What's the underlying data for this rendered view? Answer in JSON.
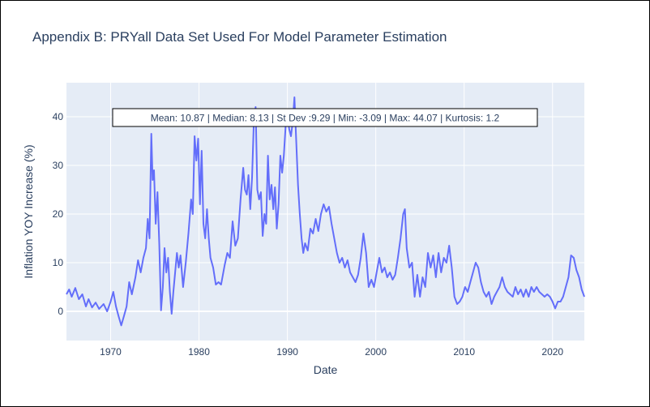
{
  "chart_data": {
    "type": "line",
    "title": "Appendix B: PRYall Data Set Used For Model Parameter Estimation",
    "xlabel": "Date",
    "ylabel": "Inflation YOY Increase (%)",
    "annotation": "Mean: 10.87 | Median: 8.13 | St Dev :9.29 | Min: -3.09 | Max: 44.07 | Kurtosis: 1.2",
    "xlim": [
      1965.0,
      2023.6
    ],
    "ylim": [
      -6,
      47
    ],
    "x_ticks": [
      1970,
      1980,
      1990,
      2000,
      2010,
      2020
    ],
    "x_tick_labels": [
      "1970",
      "1980",
      "1990",
      "2000",
      "2010",
      "2020"
    ],
    "y_ticks": [
      0,
      10,
      20,
      30,
      40
    ],
    "y_tick_labels": [
      "0",
      "10",
      "20",
      "30",
      "40"
    ],
    "grid": true,
    "colors": {
      "line": "#636efa",
      "plot_bg": "#e5ecf6",
      "grid": "#ffffff",
      "text": "#2a3f5f"
    },
    "series": [
      {
        "points": [
          [
            1965.0,
            3.5
          ],
          [
            1965.3,
            4.5
          ],
          [
            1965.6,
            3.0
          ],
          [
            1966.0,
            4.8
          ],
          [
            1966.4,
            2.5
          ],
          [
            1966.8,
            3.5
          ],
          [
            1967.2,
            1.0
          ],
          [
            1967.5,
            2.5
          ],
          [
            1967.9,
            0.8
          ],
          [
            1968.3,
            1.8
          ],
          [
            1968.7,
            0.5
          ],
          [
            1969.2,
            1.5
          ],
          [
            1969.6,
            0.0
          ],
          [
            1970.0,
            2.0
          ],
          [
            1970.3,
            4.0
          ],
          [
            1970.6,
            1.0
          ],
          [
            1970.9,
            -1.0
          ],
          [
            1971.2,
            -2.9
          ],
          [
            1971.5,
            -1.0
          ],
          [
            1971.8,
            1.0
          ],
          [
            1972.1,
            6.0
          ],
          [
            1972.4,
            3.5
          ],
          [
            1972.8,
            7.0
          ],
          [
            1973.1,
            10.5
          ],
          [
            1973.4,
            8.0
          ],
          [
            1973.7,
            11.0
          ],
          [
            1974.0,
            13.0
          ],
          [
            1974.2,
            19.0
          ],
          [
            1974.4,
            15.0
          ],
          [
            1974.6,
            36.5
          ],
          [
            1974.75,
            27.0
          ],
          [
            1974.9,
            29.0
          ],
          [
            1975.1,
            18.0
          ],
          [
            1975.3,
            24.5
          ],
          [
            1975.5,
            14.0
          ],
          [
            1975.7,
            0.2
          ],
          [
            1975.9,
            5.0
          ],
          [
            1976.1,
            13.0
          ],
          [
            1976.3,
            8.0
          ],
          [
            1976.5,
            11.0
          ],
          [
            1976.7,
            4.0
          ],
          [
            1976.9,
            -0.5
          ],
          [
            1977.1,
            4.0
          ],
          [
            1977.3,
            8.0
          ],
          [
            1977.5,
            12.0
          ],
          [
            1977.7,
            9.0
          ],
          [
            1977.9,
            11.5
          ],
          [
            1978.2,
            5.0
          ],
          [
            1978.5,
            10.0
          ],
          [
            1978.8,
            16.0
          ],
          [
            1979.1,
            23.0
          ],
          [
            1979.3,
            20.0
          ],
          [
            1979.5,
            36.0
          ],
          [
            1979.7,
            31.0
          ],
          [
            1979.9,
            35.5
          ],
          [
            1980.1,
            22.0
          ],
          [
            1980.3,
            33.0
          ],
          [
            1980.5,
            18.0
          ],
          [
            1980.7,
            15.0
          ],
          [
            1980.9,
            21.0
          ],
          [
            1981.1,
            15.0
          ],
          [
            1981.3,
            11.0
          ],
          [
            1981.6,
            9.0
          ],
          [
            1981.9,
            5.5
          ],
          [
            1982.2,
            6.0
          ],
          [
            1982.5,
            5.5
          ],
          [
            1982.9,
            9.5
          ],
          [
            1983.2,
            12.0
          ],
          [
            1983.5,
            11.0
          ],
          [
            1983.8,
            18.5
          ],
          [
            1984.1,
            13.5
          ],
          [
            1984.4,
            15.0
          ],
          [
            1984.7,
            23.0
          ],
          [
            1985.0,
            29.5
          ],
          [
            1985.2,
            25.0
          ],
          [
            1985.4,
            24.0
          ],
          [
            1985.6,
            28.0
          ],
          [
            1985.8,
            21.0
          ],
          [
            1986.0,
            27.5
          ],
          [
            1986.2,
            39.0
          ],
          [
            1986.4,
            42.0
          ],
          [
            1986.6,
            25.0
          ],
          [
            1986.8,
            23.0
          ],
          [
            1987.0,
            24.5
          ],
          [
            1987.2,
            15.5
          ],
          [
            1987.4,
            20.0
          ],
          [
            1987.6,
            18.0
          ],
          [
            1987.8,
            32.0
          ],
          [
            1988.0,
            23.0
          ],
          [
            1988.2,
            26.0
          ],
          [
            1988.4,
            21.0
          ],
          [
            1988.6,
            25.5
          ],
          [
            1988.8,
            17.0
          ],
          [
            1989.0,
            22.0
          ],
          [
            1989.2,
            32.0
          ],
          [
            1989.4,
            28.5
          ],
          [
            1989.6,
            32.0
          ],
          [
            1989.8,
            38.0
          ],
          [
            1990.0,
            41.0
          ],
          [
            1990.2,
            37.5
          ],
          [
            1990.4,
            36.0
          ],
          [
            1990.6,
            39.0
          ],
          [
            1990.8,
            44.0
          ],
          [
            1991.0,
            35.0
          ],
          [
            1991.2,
            26.0
          ],
          [
            1991.4,
            20.0
          ],
          [
            1991.6,
            15.0
          ],
          [
            1991.8,
            12.0
          ],
          [
            1992.0,
            14.0
          ],
          [
            1992.3,
            12.5
          ],
          [
            1992.6,
            17.0
          ],
          [
            1992.9,
            16.0
          ],
          [
            1993.2,
            19.0
          ],
          [
            1993.5,
            16.5
          ],
          [
            1993.8,
            20.0
          ],
          [
            1994.1,
            22.0
          ],
          [
            1994.4,
            20.5
          ],
          [
            1994.7,
            21.5
          ],
          [
            1995.0,
            18.0
          ],
          [
            1995.3,
            15.0
          ],
          [
            1995.6,
            12.0
          ],
          [
            1995.9,
            10.0
          ],
          [
            1996.2,
            11.0
          ],
          [
            1996.5,
            9.0
          ],
          [
            1996.8,
            10.5
          ],
          [
            1997.1,
            8.0
          ],
          [
            1997.4,
            7.0
          ],
          [
            1997.7,
            6.0
          ],
          [
            1998.0,
            7.5
          ],
          [
            1998.3,
            11.0
          ],
          [
            1998.6,
            16.0
          ],
          [
            1998.9,
            12.0
          ],
          [
            1999.2,
            5.0
          ],
          [
            1999.5,
            6.5
          ],
          [
            1999.8,
            5.0
          ],
          [
            2000.1,
            8.0
          ],
          [
            2000.4,
            11.0
          ],
          [
            2000.7,
            8.0
          ],
          [
            2001.0,
            9.0
          ],
          [
            2001.3,
            7.0
          ],
          [
            2001.6,
            8.0
          ],
          [
            2001.9,
            6.5
          ],
          [
            2002.2,
            7.5
          ],
          [
            2002.5,
            11.0
          ],
          [
            2002.8,
            15.0
          ],
          [
            2003.1,
            20.0
          ],
          [
            2003.3,
            21.0
          ],
          [
            2003.5,
            13.0
          ],
          [
            2003.8,
            9.0
          ],
          [
            2004.1,
            10.0
          ],
          [
            2004.4,
            3.0
          ],
          [
            2004.7,
            7.5
          ],
          [
            2005.0,
            3.0
          ],
          [
            2005.3,
            7.0
          ],
          [
            2005.6,
            5.0
          ],
          [
            2005.9,
            12.0
          ],
          [
            2006.2,
            9.0
          ],
          [
            2006.5,
            11.5
          ],
          [
            2006.8,
            7.0
          ],
          [
            2007.1,
            12.0
          ],
          [
            2007.4,
            8.0
          ],
          [
            2007.7,
            11.0
          ],
          [
            2008.0,
            10.0
          ],
          [
            2008.3,
            13.5
          ],
          [
            2008.6,
            9.0
          ],
          [
            2008.9,
            3.0
          ],
          [
            2009.2,
            1.5
          ],
          [
            2009.5,
            2.0
          ],
          [
            2009.8,
            3.0
          ],
          [
            2010.1,
            5.0
          ],
          [
            2010.4,
            4.0
          ],
          [
            2010.7,
            6.0
          ],
          [
            2011.0,
            8.0
          ],
          [
            2011.3,
            10.0
          ],
          [
            2011.6,
            9.0
          ],
          [
            2011.9,
            6.0
          ],
          [
            2012.2,
            4.0
          ],
          [
            2012.5,
            3.0
          ],
          [
            2012.8,
            4.0
          ],
          [
            2013.1,
            1.5
          ],
          [
            2013.4,
            3.0
          ],
          [
            2013.7,
            4.0
          ],
          [
            2014.0,
            5.0
          ],
          [
            2014.3,
            7.0
          ],
          [
            2014.6,
            5.0
          ],
          [
            2014.9,
            4.0
          ],
          [
            2015.2,
            3.5
          ],
          [
            2015.5,
            3.0
          ],
          [
            2015.8,
            5.0
          ],
          [
            2016.1,
            3.5
          ],
          [
            2016.4,
            4.5
          ],
          [
            2016.7,
            3.0
          ],
          [
            2017.0,
            4.5
          ],
          [
            2017.3,
            3.0
          ],
          [
            2017.6,
            5.0
          ],
          [
            2017.9,
            4.0
          ],
          [
            2018.2,
            5.0
          ],
          [
            2018.5,
            4.0
          ],
          [
            2018.8,
            3.5
          ],
          [
            2019.1,
            3.0
          ],
          [
            2019.4,
            3.5
          ],
          [
            2019.7,
            3.0
          ],
          [
            2020.0,
            2.0
          ],
          [
            2020.3,
            0.6
          ],
          [
            2020.6,
            2.0
          ],
          [
            2020.9,
            2.0
          ],
          [
            2021.2,
            3.0
          ],
          [
            2021.5,
            5.0
          ],
          [
            2021.8,
            7.0
          ],
          [
            2022.1,
            11.5
          ],
          [
            2022.4,
            11.0
          ],
          [
            2022.7,
            8.5
          ],
          [
            2023.0,
            7.0
          ],
          [
            2023.3,
            4.5
          ],
          [
            2023.6,
            3.0
          ]
        ]
      }
    ]
  }
}
